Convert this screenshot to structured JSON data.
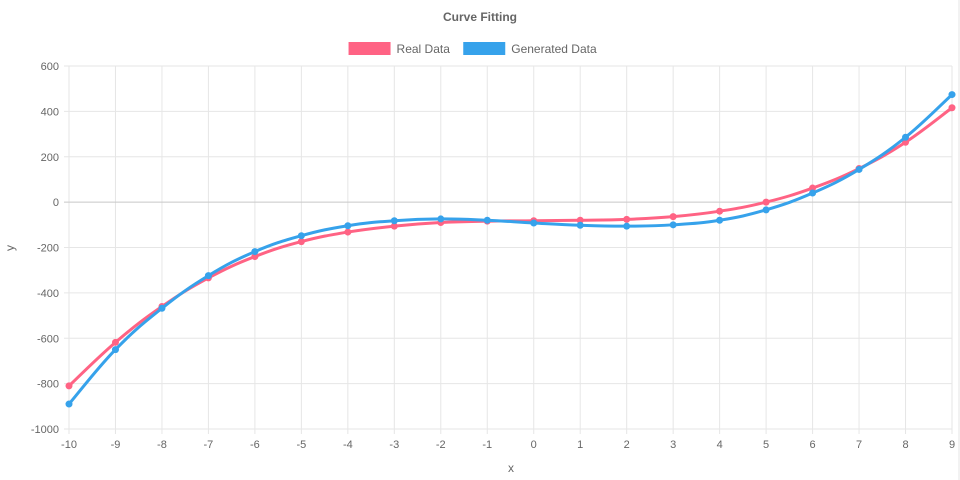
{
  "chart_data": {
    "type": "line",
    "title": "Curve Fitting",
    "xlabel": "x",
    "ylabel": "y",
    "x": [
      -10,
      -9,
      -8,
      -7,
      -6,
      -5,
      -4,
      -3,
      -2,
      -1,
      0,
      1,
      2,
      3,
      4,
      5,
      6,
      7,
      8,
      9
    ],
    "xlim": [
      -10,
      9
    ],
    "ylim": [
      -1000,
      600
    ],
    "yticks": [
      600,
      400,
      200,
      0,
      -200,
      -400,
      -600,
      -800,
      -1000
    ],
    "grid": true,
    "legend_position": "top",
    "series": [
      {
        "name": "Real Data",
        "color": "#ff6384",
        "values": [
          -810,
          -618,
          -460,
          -334,
          -240,
          -174,
          -132,
          -106,
          -90,
          -84,
          -82,
          -80,
          -76,
          -64,
          -40,
          0,
          62,
          148,
          264,
          416
        ]
      },
      {
        "name": "Generated Data",
        "color": "#36a2eb",
        "values": [
          -890,
          -650,
          -468,
          -324,
          -218,
          -148,
          -104,
          -82,
          -74,
          -80,
          -92,
          -102,
          -106,
          -100,
          -80,
          -34,
          40,
          144,
          286,
          474
        ]
      }
    ]
  }
}
